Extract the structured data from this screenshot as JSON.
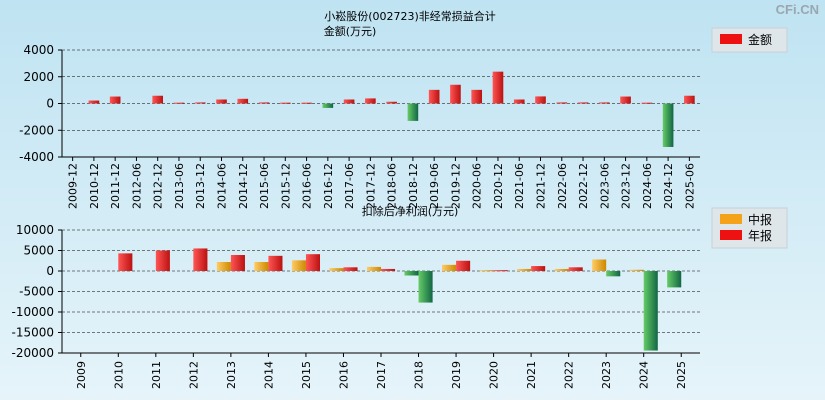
{
  "watermark": "CFi.CN",
  "chart_data": [
    {
      "type": "bar",
      "title": "小崧股份(002723)非经常损益合计",
      "subtitle": "金额(万元)",
      "legend": [
        {
          "name": "金额",
          "color": "#ee1111"
        }
      ],
      "legend_position": "top-right",
      "ylim": [
        -4000,
        4000
      ],
      "yticks": [
        4000,
        2000,
        0,
        -2000,
        -4000
      ],
      "grid": true,
      "categories": [
        "2009-12",
        "2010-12",
        "2011-12",
        "2012-06",
        "2012-12",
        "2013-06",
        "2013-12",
        "2014-06",
        "2014-12",
        "2015-06",
        "2015-12",
        "2016-06",
        "2016-12",
        "2017-06",
        "2017-12",
        "2018-06",
        "2018-12",
        "2019-06",
        "2019-12",
        "2020-06",
        "2020-12",
        "2021-06",
        "2021-12",
        "2022-06",
        "2022-12",
        "2023-06",
        "2023-12",
        "2024-06",
        "2024-12",
        "2025-06"
      ],
      "series": [
        {
          "name": "金额",
          "values": [
            0,
            220,
            520,
            0,
            580,
            60,
            80,
            300,
            350,
            80,
            60,
            60,
            -330,
            300,
            380,
            130,
            -1300,
            1020,
            1400,
            1020,
            2380,
            300,
            530,
            80,
            80,
            80,
            520,
            60,
            -3250,
            580
          ]
        }
      ]
    },
    {
      "type": "bar",
      "title": "扣除后净利润(万元)",
      "legend": [
        {
          "name": "中报",
          "color": "#f5a21b"
        },
        {
          "name": "年报",
          "color": "#ee1111"
        }
      ],
      "legend_position": "top-right",
      "ylim": [
        -20000,
        10000
      ],
      "yticks": [
        10000,
        5000,
        0,
        -5000,
        -10000,
        -15000,
        -20000
      ],
      "grid": true,
      "categories": [
        "2009",
        "2010",
        "2011",
        "2012",
        "2013",
        "2014",
        "2015",
        "2016",
        "2017",
        "2018",
        "2019",
        "2020",
        "2021",
        "2022",
        "2023",
        "2024",
        "2025"
      ],
      "series": [
        {
          "name": "中报",
          "values": [
            null,
            null,
            null,
            null,
            2200,
            2200,
            2600,
            700,
            1000,
            -1100,
            1500,
            200,
            500,
            500,
            2800,
            300,
            -4000
          ]
        },
        {
          "name": "年报",
          "values": [
            null,
            4300,
            5000,
            5500,
            3900,
            3700,
            4100,
            900,
            500,
            -7700,
            2500,
            200,
            1200,
            900,
            -1300,
            -19400,
            null
          ]
        }
      ]
    }
  ]
}
